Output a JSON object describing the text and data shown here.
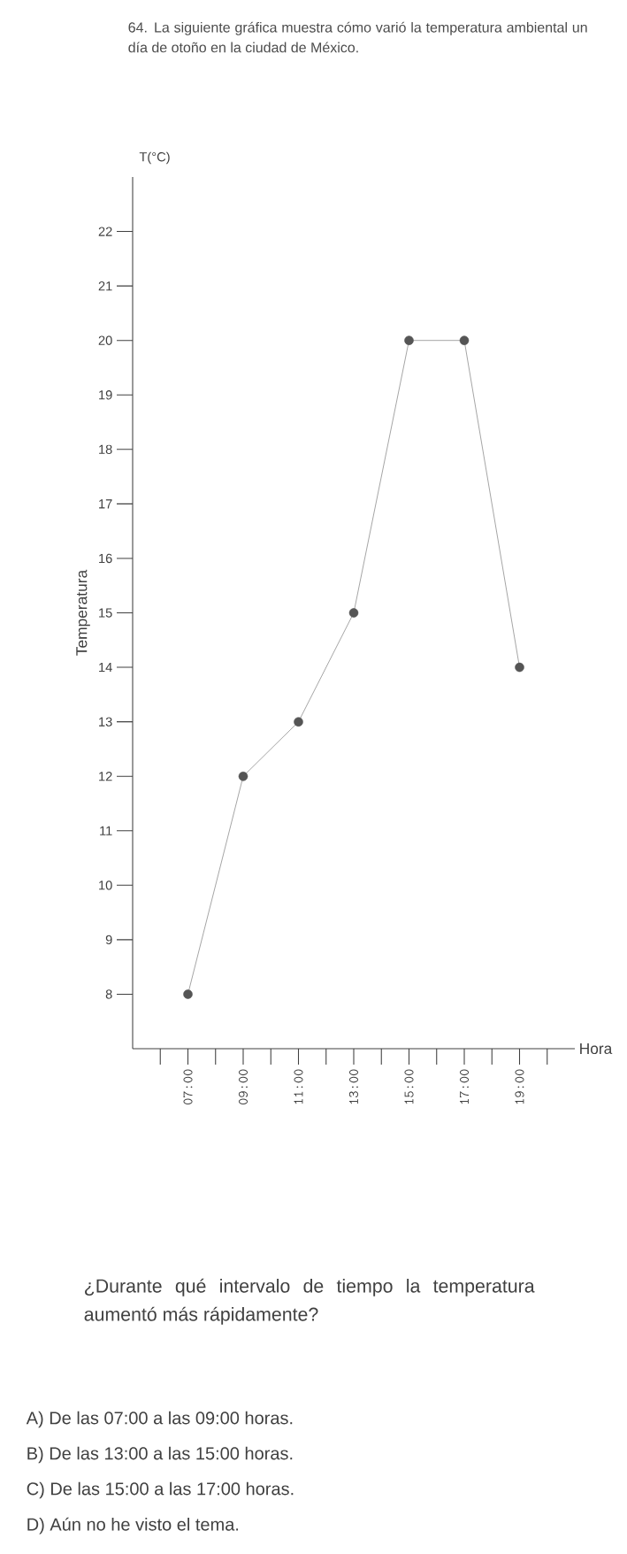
{
  "chart_data": {
    "type": "line",
    "title": "64. La siguiente gráfica muestra cómo varió la temperatura ambiental un día de otoño en la ciudad de México.",
    "xlabel": "Hora",
    "ylabel": "Temperatura",
    "x": [
      7,
      9,
      11,
      13,
      15,
      17,
      19
    ],
    "series": [
      {
        "color": "#555555",
        "values": [
          8,
          12,
          13,
          15,
          20,
          20,
          14
        ]
      }
    ],
    "marker": "circle",
    "line_style": "solid",
    "xlim": [
      5,
      21
    ],
    "ylim": [
      7,
      23
    ],
    "xticks": [
      {
        "value": 7,
        "label": "07:00"
      },
      {
        "value": 9,
        "label": "09:00"
      },
      {
        "value": 11,
        "label": "11:00"
      },
      {
        "value": 13,
        "label": "13:00"
      },
      {
        "value": 15,
        "label": "15:00"
      },
      {
        "value": 17,
        "label": "17:00"
      },
      {
        "value": 19,
        "label": "19:00"
      }
    ],
    "yticks": [
      8,
      9,
      10,
      11,
      12,
      13,
      14,
      15,
      16,
      17,
      18,
      19,
      20,
      21,
      22
    ],
    "annotations": [
      "T(°C)",
      "¿Durante qué intervalo de tiempo la temperatura aumentó más rápidamente?",
      "A) De las 07:00 a las 09:00 horas.",
      "B) De las 13:00 a las 15:00 horas.",
      "C) De las 15:00 a las 17:00 horas.",
      "D) Aún no he visto el tema."
    ]
  }
}
